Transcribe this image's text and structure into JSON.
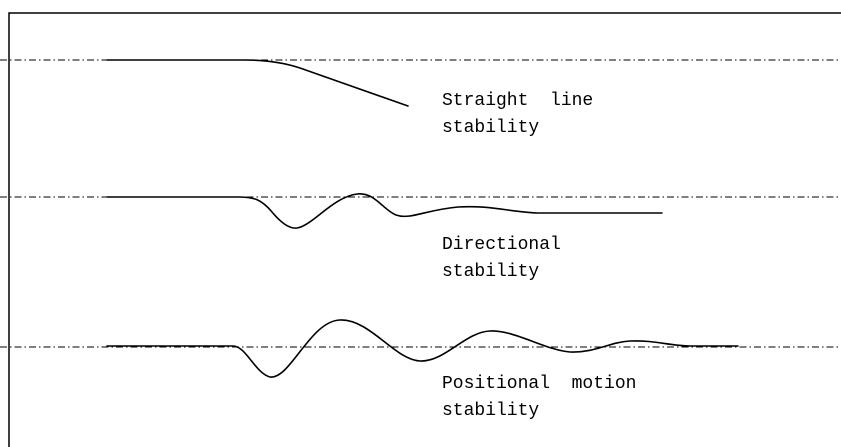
{
  "diagram": {
    "panels": [
      {
        "id": "straight-line",
        "label_line1": "Straight  line",
        "label_line2": "stability"
      },
      {
        "id": "directional",
        "label_line1": "Directional",
        "label_line2": "stability"
      },
      {
        "id": "positional-motion",
        "label_line1": "Positional  motion",
        "label_line2": "stability"
      }
    ],
    "colors": {
      "line": "#000000",
      "background": "#ffffff"
    }
  }
}
